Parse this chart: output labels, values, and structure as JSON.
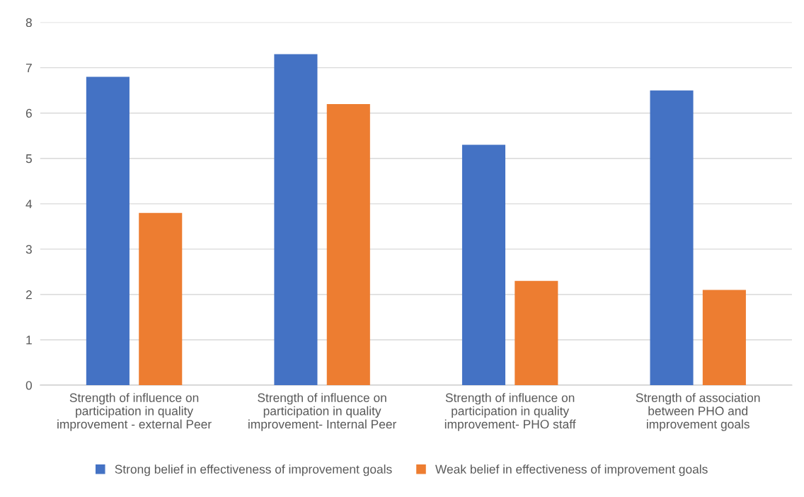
{
  "chart_data": {
    "type": "bar",
    "categories": [
      "Strength of influence on\nparticipation in quality\nimprovement - external Peer",
      "Strength of influence on\nparticipation in quality\nimprovement- Internal Peer",
      "Strength of influence on\nparticipation in quality\nimprovement- PHO staff",
      "Strength of association\nbetween PHO and\nimprovement goals"
    ],
    "series": [
      {
        "name": "Strong belief in effectiveness of improvement goals",
        "color": "#4472c4",
        "values": [
          6.8,
          7.3,
          5.3,
          6.5
        ]
      },
      {
        "name": "Weak belief in effectiveness of improvement goals",
        "color": "#ed7d31",
        "values": [
          3.8,
          6.2,
          2.3,
          2.1
        ]
      }
    ],
    "ylim": [
      0,
      8
    ],
    "yticks": [
      0,
      1,
      2,
      3,
      4,
      5,
      6,
      7,
      8
    ],
    "grid": "y",
    "legend": "bottom"
  }
}
